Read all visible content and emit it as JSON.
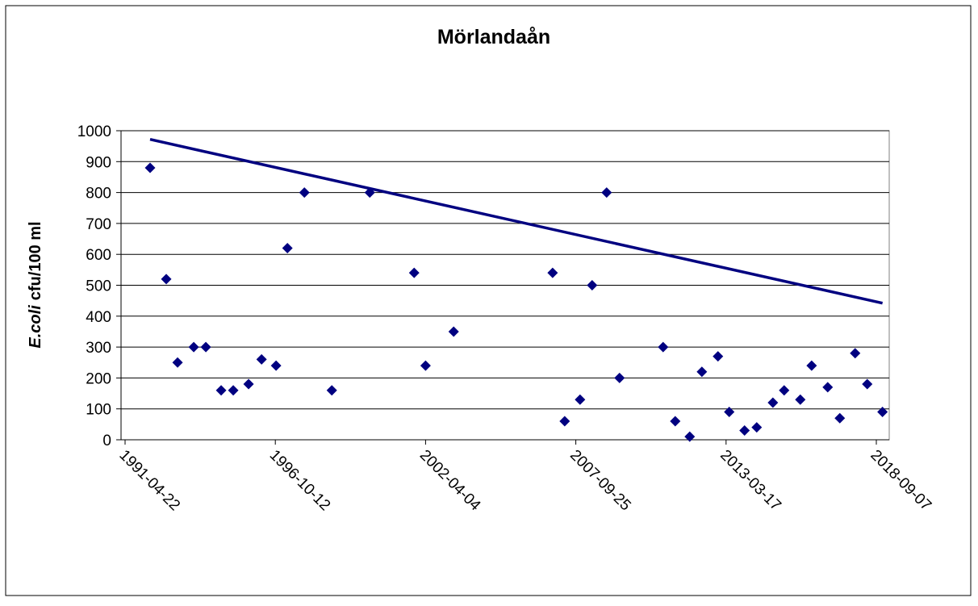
{
  "chart_data": {
    "type": "scatter",
    "title": "Mörlandaån",
    "ylabel": [
      "E.coli",
      "cfu/100 ml"
    ],
    "xlim": [
      "1991-04-22",
      "2018-09-07"
    ],
    "xticks": [
      "1991-04-22",
      "1996-10-12",
      "2002-04-04",
      "2007-09-25",
      "2013-03-17",
      "2018-09-07"
    ],
    "ylim": [
      0,
      1000
    ],
    "yticks": [
      0,
      100,
      200,
      300,
      400,
      500,
      600,
      700,
      800,
      900,
      1000
    ],
    "grid": true,
    "color": "#000080",
    "x": [
      "1992-03-20",
      "1992-10-21",
      "1993-03-21",
      "1993-10-22",
      "1994-04-01",
      "1994-10-22",
      "1995-04-01",
      "1995-10-22",
      "1996-04-12",
      "1996-10-22",
      "1997-03-22",
      "1997-11-03",
      "1998-11-03",
      "2000-03-22",
      "2001-11-03",
      "2002-04-04",
      "2003-04-13",
      "2006-11-20",
      "2007-04-30",
      "2007-11-20",
      "2008-04-29",
      "2008-11-08",
      "2009-04-29",
      "2010-11-30",
      "2011-05-10",
      "2011-11-19",
      "2012-04-29",
      "2012-11-29",
      "2013-04-28",
      "2013-11-18",
      "2014-04-29",
      "2014-11-30",
      "2015-04-29",
      "2015-11-30",
      "2016-04-29",
      "2016-11-29",
      "2017-05-09",
      "2017-11-29",
      "2018-05-09",
      "2018-11-28"
    ],
    "values": [
      880,
      520,
      250,
      300,
      300,
      160,
      160,
      180,
      260,
      240,
      620,
      800,
      160,
      800,
      540,
      240,
      350,
      540,
      60,
      130,
      500,
      800,
      200,
      300,
      60,
      10,
      220,
      270,
      90,
      30,
      40,
      120,
      160,
      130,
      240,
      170,
      70,
      280,
      180,
      90
    ],
    "trendline": {
      "x": [
        "1992-03-20",
        "2018-11-28"
      ],
      "values": [
        972,
        442
      ],
      "color": "#000080"
    }
  }
}
